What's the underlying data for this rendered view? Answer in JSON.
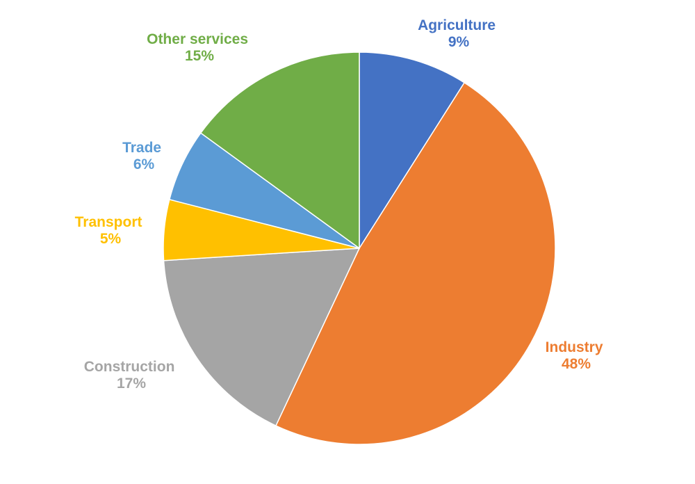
{
  "chart_data": {
    "type": "pie",
    "start": "top",
    "direction": "clockwise",
    "slices": [
      {
        "label": "Agriculture",
        "value": 9,
        "value_label": "9%",
        "color": "#4472C4"
      },
      {
        "label": "Industry",
        "value": 48,
        "value_label": "48%",
        "color": "#ED7D31"
      },
      {
        "label": "Construction",
        "value": 17,
        "value_label": "17%",
        "color": "#A5A5A5"
      },
      {
        "label": "Transport",
        "value": 5,
        "value_label": "5%",
        "color": "#FFC000"
      },
      {
        "label": "Trade",
        "value": 6,
        "value_label": "6%",
        "color": "#5B9BD5"
      },
      {
        "label": "Other services",
        "value": 15,
        "value_label": "15%",
        "color": "#70AD47"
      }
    ]
  }
}
